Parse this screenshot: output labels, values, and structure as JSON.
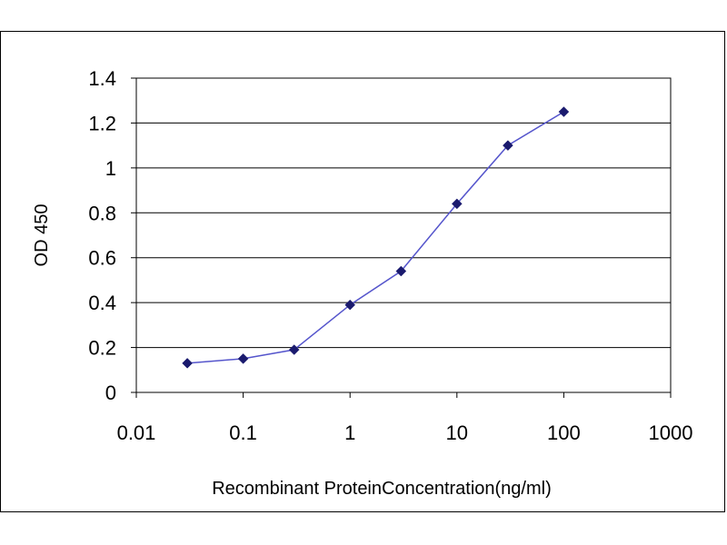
{
  "chart_data": {
    "type": "line",
    "title": "",
    "xlabel": "Recombinant ProteinConcentration(ng/ml)",
    "ylabel": "OD 450",
    "x_scale": "log",
    "xlim": [
      0.01,
      1000
    ],
    "ylim": [
      0,
      1.4
    ],
    "x_ticks": [
      "0.01",
      "0.1",
      "1",
      "10",
      "100",
      "1000"
    ],
    "y_ticks": [
      "0",
      "0.2",
      "0.4",
      "0.6",
      "0.8",
      "1",
      "1.2",
      "1.4"
    ],
    "grid": "horizontal",
    "legend": "none",
    "line_color": "#5555cc",
    "marker_color": "#1a1a6e",
    "series": [
      {
        "x": [
          0.03,
          0.1,
          0.3,
          1,
          3,
          10,
          30,
          100
        ],
        "values": [
          0.13,
          0.15,
          0.19,
          0.39,
          0.54,
          0.84,
          1.1,
          1.25
        ]
      }
    ]
  }
}
